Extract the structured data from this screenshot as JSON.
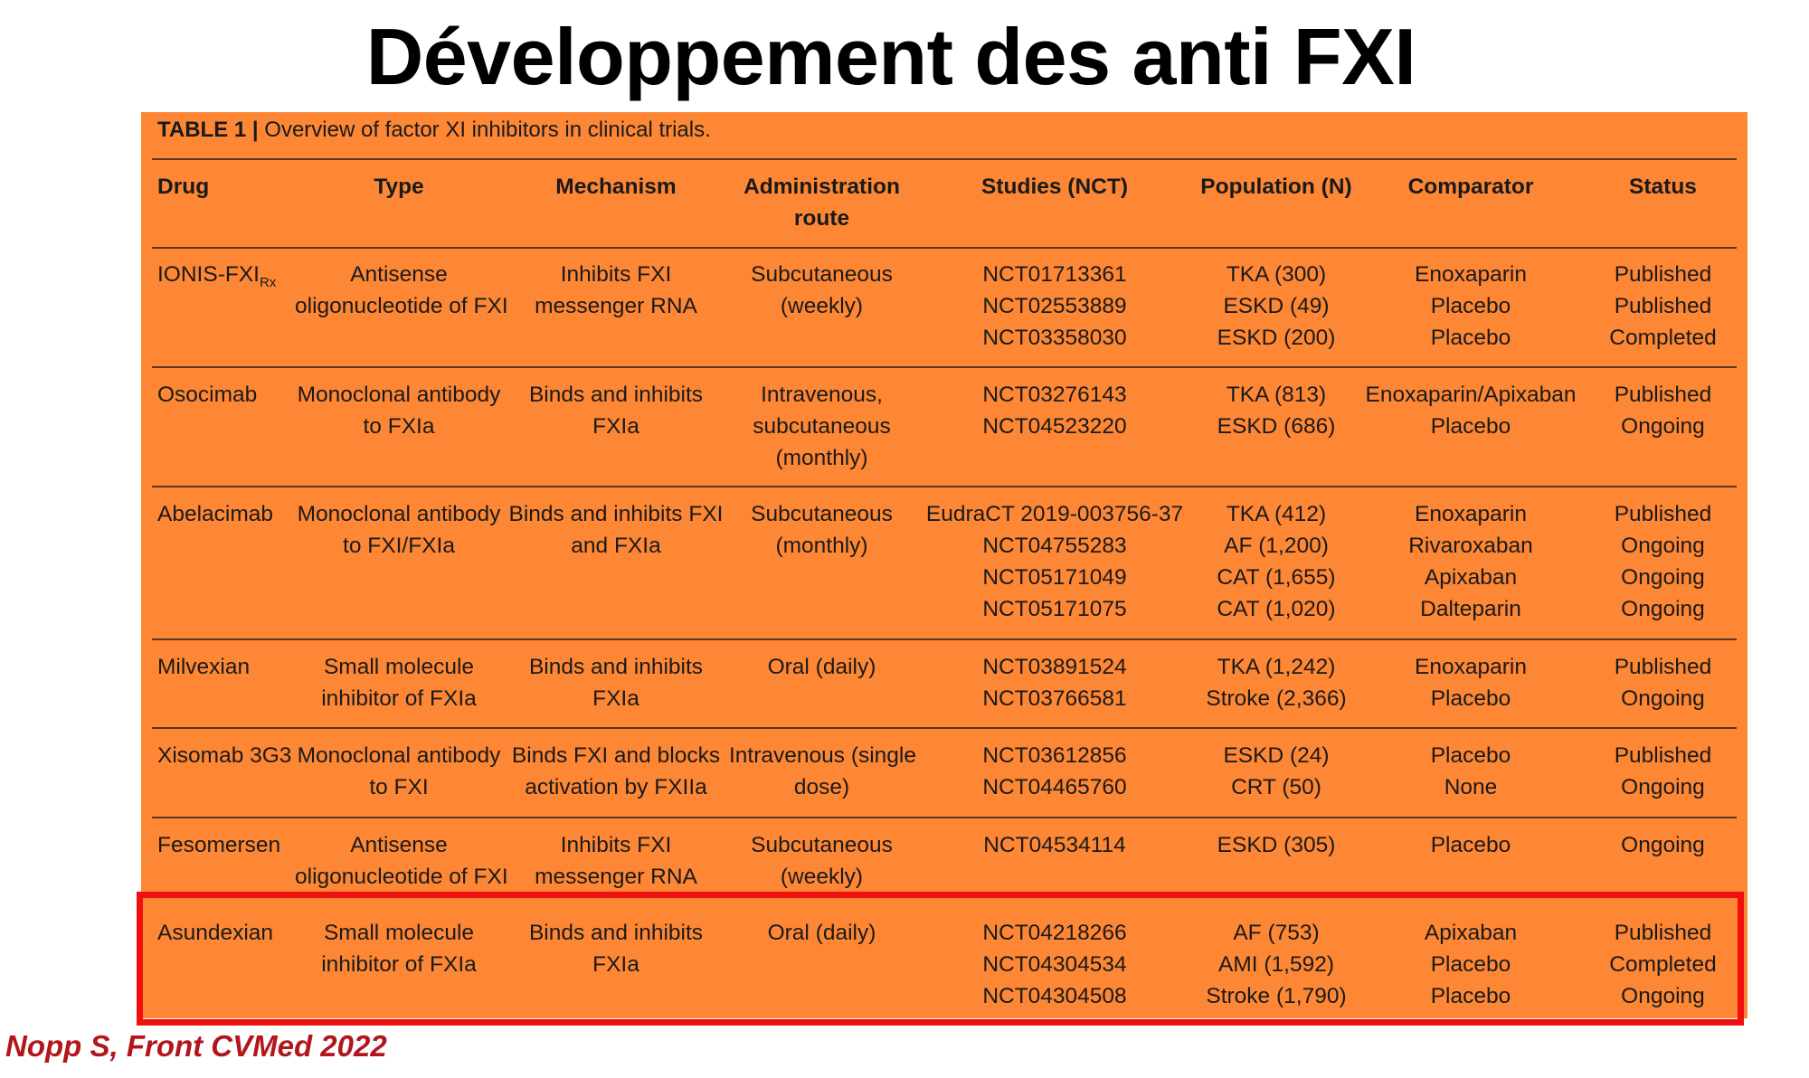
{
  "title": "Développement des anti FXI",
  "table": {
    "caption_label": "TABLE 1 |",
    "caption_text": " Overview of factor XI inhibitors in clinical trials.",
    "headers": [
      "Drug",
      "Type",
      "Mechanism",
      "Administration route",
      "Studies (NCT)",
      "Population (N)",
      "Comparator",
      "Status"
    ],
    "header_lines": {
      "admin_1": "Administration",
      "admin_2": "route"
    },
    "rows": [
      {
        "drug": "IONIS-FXI",
        "drug_sub": "Rx",
        "type": [
          "Antisense",
          "oligonucleotide of FXI"
        ],
        "mechanism": [
          "Inhibits FXI",
          "messenger RNA"
        ],
        "route": [
          "Subcutaneous",
          "(weekly)"
        ],
        "studies": [
          "NCT01713361",
          "NCT02553889",
          "NCT03358030"
        ],
        "population": [
          "TKA (300)",
          "ESKD (49)",
          "ESKD (200)"
        ],
        "comparator": [
          "Enoxaparin",
          "Placebo",
          "Placebo"
        ],
        "status": [
          "Published",
          "Published",
          "Completed"
        ]
      },
      {
        "drug": "Osocimab",
        "type": [
          "Monoclonal antibody",
          "to FXIa"
        ],
        "mechanism": [
          "Binds and inhibits",
          "FXIa"
        ],
        "route": [
          "Intravenous,",
          "subcutaneous",
          "(monthly)"
        ],
        "studies": [
          "NCT03276143",
          "NCT04523220"
        ],
        "population": [
          "TKA (813)",
          "ESKD (686)"
        ],
        "comparator": [
          "Enoxaparin/Apixaban",
          "Placebo"
        ],
        "status": [
          "Published",
          "Ongoing"
        ]
      },
      {
        "drug": "Abelacimab",
        "type": [
          "Monoclonal antibody",
          "to FXI/FXIa"
        ],
        "mechanism": [
          "Binds and inhibits FXI",
          "and FXIa"
        ],
        "route": [
          "Subcutaneous",
          "(monthly)"
        ],
        "studies": [
          "EudraCT 2019-003756-37",
          "NCT04755283",
          "NCT05171049",
          "NCT05171075"
        ],
        "population": [
          "TKA (412)",
          "AF (1,200)",
          "CAT (1,655)",
          "CAT (1,020)"
        ],
        "comparator": [
          "Enoxaparin",
          "Rivaroxaban",
          "Apixaban",
          "Dalteparin"
        ],
        "status": [
          "Published",
          "Ongoing",
          "Ongoing",
          "Ongoing"
        ]
      },
      {
        "drug": "Milvexian",
        "type": [
          "Small molecule",
          "inhibitor of FXIa"
        ],
        "mechanism": [
          "Binds and inhibits",
          "FXIa"
        ],
        "route": [
          "Oral (daily)"
        ],
        "studies": [
          "NCT03891524",
          "NCT03766581"
        ],
        "population": [
          "TKA (1,242)",
          "Stroke (2,366)"
        ],
        "comparator": [
          "Enoxaparin",
          "Placebo"
        ],
        "status": [
          "Published",
          "Ongoing"
        ]
      },
      {
        "drug": "Xisomab 3G3",
        "type": [
          "Monoclonal antibody",
          "to FXI"
        ],
        "mechanism": [
          "Binds FXI and blocks",
          "activation by FXIIa"
        ],
        "route": [
          "Intravenous (single",
          "dose)"
        ],
        "studies": [
          "NCT03612856",
          "NCT04465760"
        ],
        "population": [
          "ESKD (24)",
          "CRT (50)"
        ],
        "comparator": [
          "Placebo",
          "None"
        ],
        "status": [
          "Published",
          "Ongoing"
        ]
      },
      {
        "drug": "Fesomersen",
        "type": [
          "Antisense",
          "oligonucleotide of FXI"
        ],
        "mechanism": [
          "Inhibits FXI",
          "messenger RNA"
        ],
        "route": [
          "Subcutaneous",
          "(weekly)"
        ],
        "studies": [
          "NCT04534114"
        ],
        "population": [
          "ESKD (305)"
        ],
        "comparator": [
          "Placebo"
        ],
        "status": [
          "Ongoing"
        ]
      },
      {
        "drug": "Asundexian",
        "type": [
          "Small molecule",
          "inhibitor of FXIa"
        ],
        "mechanism": [
          "Binds and inhibits",
          "FXIa"
        ],
        "route": [
          "Oral (daily)"
        ],
        "studies": [
          "NCT04218266",
          "NCT04304534",
          "NCT04304508"
        ],
        "population": [
          "AF (753)",
          "AMI (1,592)",
          "Stroke (1,790)"
        ],
        "comparator": [
          "Apixaban",
          "Placebo",
          "Placebo"
        ],
        "status": [
          "Published",
          "Completed",
          "Ongoing"
        ]
      }
    ]
  },
  "highlighted_row": "Asundexian",
  "citation": "Nopp S, Front CVMed 2022",
  "colors": {
    "table_background": "#fd8735",
    "highlight_border": "#f01010",
    "citation": "#b3151b"
  }
}
